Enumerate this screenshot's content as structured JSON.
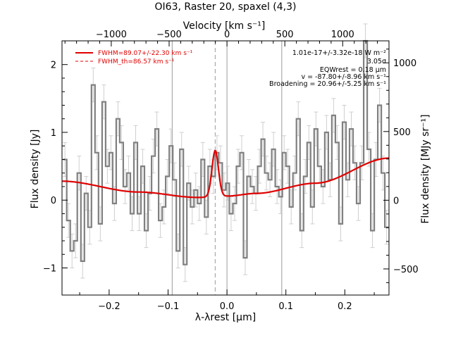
{
  "chart_data": {
    "type": "line",
    "title": "OI63, Raster 20, spaxel (4,3)",
    "xlabel": "λ-λrest [μm]",
    "ylabel": "Flux density [Jy]",
    "top_xlabel": "Velocity [km s⁻¹]",
    "right_ylabel": "Flux density [MJy sr⁻¹]",
    "xlim": [
      -0.28,
      0.275
    ],
    "ylim": [
      -1.4,
      2.35
    ],
    "right_ylim": [
      -690,
      1160
    ],
    "x_ticks": [
      -0.2,
      -0.1,
      0.0,
      0.1,
      0.2
    ],
    "x_tick_labels": [
      "−0.2",
      "−0.1",
      "0.0",
      "0.1",
      "0.2"
    ],
    "y_ticks": [
      -1,
      0,
      1,
      2
    ],
    "y_tick_labels": [
      "−1",
      "0",
      "1",
      "2"
    ],
    "top_ticks": [
      -1000,
      -500,
      0,
      500,
      1000
    ],
    "top_tick_labels": [
      "−1000",
      "−500",
      "0",
      "500",
      "1000"
    ],
    "right_ticks": [
      -500,
      0,
      500,
      1000
    ],
    "right_tick_labels": [
      "−500",
      "0",
      "500",
      "1000"
    ],
    "vertical_lines": [
      -0.093,
      0.0,
      0.093
    ],
    "dashed_line": -0.02,
    "gaussian": {
      "center": -0.02,
      "amplitude": 0.68,
      "sigma": 0.0055
    },
    "baseline": {
      "x": [
        -0.28,
        -0.15,
        -0.05,
        0.0,
        0.05,
        0.15,
        0.275
      ],
      "y": [
        0.28,
        0.12,
        0.04,
        0.06,
        0.1,
        0.25,
        0.62
      ]
    },
    "series": [
      {
        "x": [
          -0.275,
          -0.269,
          -0.263,
          -0.257,
          -0.251,
          -0.245,
          -0.239,
          -0.233,
          -0.227,
          -0.221,
          -0.215,
          -0.209,
          -0.203,
          -0.197,
          -0.191,
          -0.185,
          -0.179,
          -0.173,
          -0.167,
          -0.161,
          -0.155,
          -0.149,
          -0.143,
          -0.137,
          -0.131,
          -0.125,
          -0.119,
          -0.113,
          -0.107,
          -0.101,
          -0.095,
          -0.089,
          -0.083,
          -0.077,
          -0.071,
          -0.065,
          -0.059,
          -0.053,
          -0.047,
          -0.041,
          -0.035,
          -0.029,
          -0.023,
          -0.017,
          -0.011,
          -0.005,
          0.001,
          0.007,
          0.013,
          0.019,
          0.025,
          0.031,
          0.037,
          0.043,
          0.049,
          0.055,
          0.061,
          0.067,
          0.073,
          0.079,
          0.085,
          0.091,
          0.097,
          0.103,
          0.109,
          0.115,
          0.121,
          0.127,
          0.133,
          0.139,
          0.145,
          0.151,
          0.157,
          0.163,
          0.169,
          0.175,
          0.181,
          0.187,
          0.193,
          0.199,
          0.205,
          0.211,
          0.217,
          0.223,
          0.229,
          0.235,
          0.241,
          0.247,
          0.253,
          0.259,
          0.265,
          0.271
        ],
        "y": [
          0.6,
          -0.3,
          -0.75,
          -0.6,
          0.4,
          -0.9,
          0.1,
          -0.4,
          1.7,
          0.7,
          -0.35,
          1.45,
          0.5,
          0.7,
          -0.05,
          1.2,
          0.85,
          0.2,
          0.4,
          -0.2,
          0.85,
          -0.2,
          0.5,
          -0.45,
          0.1,
          0.65,
          1.05,
          -0.3,
          -0.1,
          0.35,
          0.8,
          0.3,
          -0.75,
          0.75,
          -0.95,
          0.25,
          -0.1,
          0.15,
          -0.05,
          0.6,
          -0.25,
          0.5,
          0.35,
          0.7,
          0.55,
          0.15,
          0.25,
          -0.2,
          -0.05,
          0.5,
          0.7,
          -0.85,
          0.35,
          0.2,
          0.1,
          0.5,
          0.9,
          0.4,
          0.3,
          0.75,
          0.2,
          0.05,
          0.7,
          0.5,
          -0.1,
          0.4,
          1.2,
          -0.45,
          0.35,
          0.85,
          -0.1,
          1.05,
          0.5,
          0.2,
          1.0,
          0.3,
          1.25,
          0.85,
          -0.35,
          1.15,
          0.3,
          1.05,
          0.55,
          -0.05,
          0.55,
          2.35,
          0.75,
          -0.45,
          0.6,
          1.4,
          0.4,
          -0.4
        ],
        "err": 0.25
      }
    ],
    "annotations": {
      "line1": "1.01e-17+/-3.32e-18 W m⁻²",
      "line2": "3.05σ",
      "line3": "EQWrest = 0.18 μm",
      "line4": "v = -87.80+/-8.96 km s⁻¹",
      "line5": "Broadening = 20.96+/-5.25 km s⁻¹"
    },
    "legend": [
      {
        "label": "FWHM=89.07+/-22.30 km s⁻¹",
        "style": "solid"
      },
      {
        "label": "FWHM_th=86.57 km s⁻¹",
        "style": "dashed"
      }
    ],
    "legend_position": "top-left",
    "colors": {
      "data": "#808080",
      "fit": "#e00000",
      "axes": "#000000"
    }
  }
}
